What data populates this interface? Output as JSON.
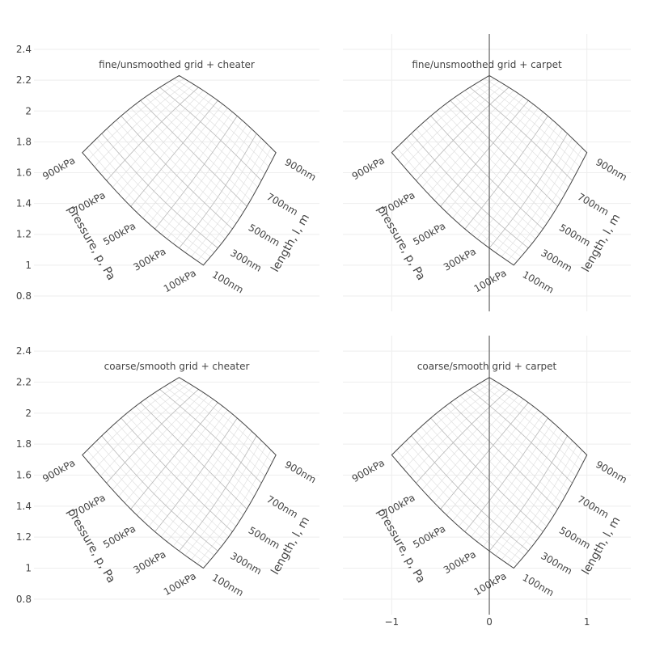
{
  "chart_data": {
    "type": "carpet",
    "y_axis": {
      "range": [
        0.7,
        2.5
      ],
      "ticks": [
        0.8,
        1,
        1.2,
        1.4,
        1.6,
        1.8,
        2,
        2.2,
        2.4
      ],
      "tick_labels": [
        "0.8",
        "1",
        "1.2",
        "1.4",
        "1.6",
        "1.8",
        "2",
        "2.2",
        "2.4"
      ]
    },
    "x_axis": {
      "range": [
        -1.5,
        1.45
      ],
      "ticks": [
        -1,
        0,
        1
      ],
      "tick_labels": [
        "−1",
        "0",
        "1"
      ]
    },
    "carpet_axes": {
      "a": {
        "title": "pressure, p, Pa",
        "tick_values": [
          100,
          300,
          500,
          700,
          900
        ],
        "tick_labels": [
          "100kPa",
          "300kPa",
          "500kPa",
          "700kPa",
          "900kPa"
        ]
      },
      "b": {
        "title": "length, l, m",
        "tick_values": [
          100,
          300,
          500,
          700,
          900
        ],
        "tick_labels": [
          "100nm",
          "300nm",
          "500nm",
          "700nm",
          "900nm"
        ]
      }
    },
    "panels": [
      {
        "title": "fine/unsmoothed grid + cheater",
        "xaxis": "cheater",
        "show_x_ticks": false,
        "smooth": false
      },
      {
        "title": "fine/unsmoothed grid + carpet",
        "xaxis": "carpet",
        "show_x_ticks": false,
        "smooth": false
      },
      {
        "title": "coarse/smooth grid + cheater",
        "xaxis": "cheater",
        "show_x_ticks": false,
        "smooth": true
      },
      {
        "title": "coarse/smooth grid + carpet",
        "xaxis": "carpet",
        "show_x_ticks": true,
        "smooth": true
      }
    ],
    "corner_points": {
      "a_min_b_min": {
        "x": 0.25,
        "y": 1.0
      },
      "a_max_b_min": {
        "x": -1.0,
        "y": 1.73
      },
      "a_min_b_max": {
        "x": 1.0,
        "y": 1.73
      },
      "a_max_b_max": {
        "x": 0.0,
        "y": 2.23
      }
    },
    "legend": "none"
  }
}
